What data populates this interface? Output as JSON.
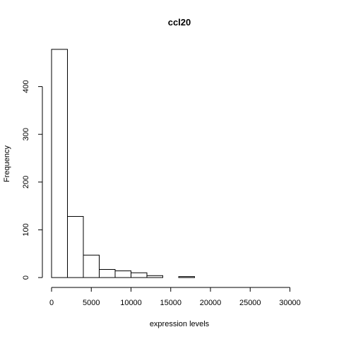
{
  "chart_data": {
    "type": "bar",
    "title": "ccl20",
    "xlabel": "expression levels",
    "ylabel": "Frequency",
    "bin_width": 2000,
    "bins": [
      {
        "start": 0,
        "end": 2000,
        "count": 478
      },
      {
        "start": 2000,
        "end": 4000,
        "count": 128
      },
      {
        "start": 4000,
        "end": 6000,
        "count": 47
      },
      {
        "start": 6000,
        "end": 8000,
        "count": 17
      },
      {
        "start": 8000,
        "end": 10000,
        "count": 14
      },
      {
        "start": 10000,
        "end": 12000,
        "count": 10
      },
      {
        "start": 12000,
        "end": 14000,
        "count": 4
      },
      {
        "start": 14000,
        "end": 16000,
        "count": 0
      },
      {
        "start": 16000,
        "end": 18000,
        "count": 2
      },
      {
        "start": 18000,
        "end": 20000,
        "count": 0
      },
      {
        "start": 20000,
        "end": 22000,
        "count": 0
      },
      {
        "start": 22000,
        "end": 24000,
        "count": 0
      },
      {
        "start": 24000,
        "end": 26000,
        "count": 0
      },
      {
        "start": 26000,
        "end": 28000,
        "count": 0
      },
      {
        "start": 28000,
        "end": 30000,
        "count": 0
      },
      {
        "start": 30000,
        "end": 32000,
        "count": 0
      }
    ],
    "xlim": [
      0,
      32000
    ],
    "ylim": [
      0,
      478
    ],
    "x_ticks": [
      0,
      5000,
      10000,
      15000,
      20000,
      25000,
      30000
    ],
    "x_tick_labels": [
      "0",
      "5000",
      "10000",
      "15000",
      "20000",
      "25000",
      "30000"
    ],
    "y_ticks": [
      0,
      100,
      200,
      300,
      400
    ],
    "y_tick_labels": [
      "0",
      "100",
      "200",
      "300",
      "400"
    ],
    "grid": false,
    "legend": "none"
  }
}
